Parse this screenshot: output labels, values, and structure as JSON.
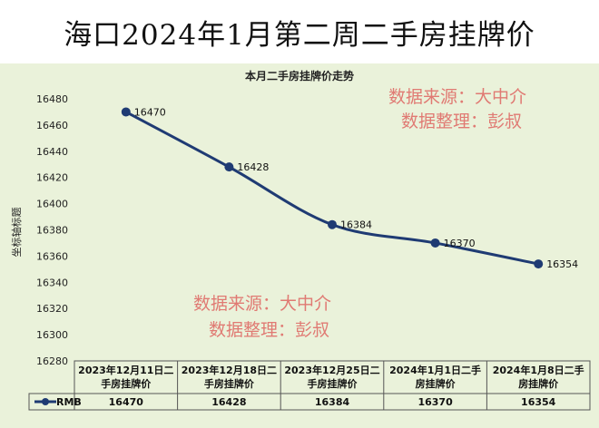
{
  "page": {
    "title": "海口2024年1月第二周二手房挂牌价"
  },
  "chart_data": {
    "type": "line",
    "title": "本月二手房挂牌价走势",
    "ylabel": "坐标轴标题",
    "xlabel": "",
    "ylim": [
      16280,
      16480
    ],
    "yticks": [
      16280,
      16300,
      16320,
      16340,
      16360,
      16380,
      16400,
      16420,
      16440,
      16460,
      16480
    ],
    "categories": [
      [
        "2023年12月11日二",
        "手房挂牌价"
      ],
      [
        "2023年12月18日二",
        "手房挂牌价"
      ],
      [
        "2023年12月25日二",
        "手房挂牌价"
      ],
      [
        "2024年1月1日二手",
        "房挂牌价"
      ],
      [
        "2024年1月8日二手",
        "房挂牌价"
      ]
    ],
    "series": [
      {
        "name": "RMB",
        "color": "#1f3b73",
        "values": [
          16470,
          16428,
          16384,
          16370,
          16354
        ]
      }
    ],
    "data_labels": true,
    "grid": false,
    "legend": "data-table",
    "watermarks": [
      {
        "line1": "数据来源：大中介",
        "line2": "数据整理：彭叔"
      },
      {
        "line1": "数据来源：大中介",
        "line2": "数据整理：彭叔"
      }
    ]
  }
}
